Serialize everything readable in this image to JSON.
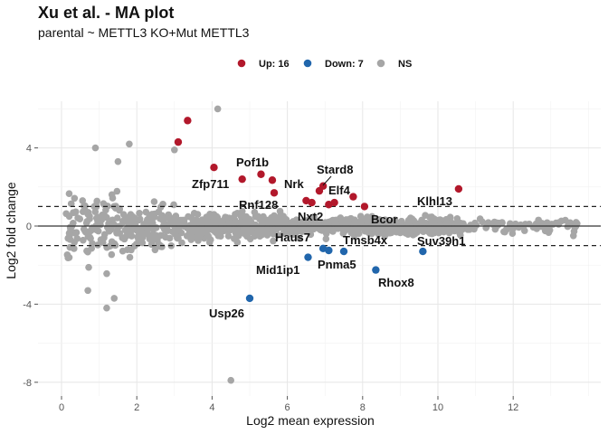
{
  "chart_data": {
    "type": "scatter",
    "title": "Xu et al. - MA plot",
    "subtitle": "parental ~ METTL3 KO+Mut METTL3",
    "xlabel": "Log2 mean expression",
    "ylabel": "Log2 fold change",
    "xlim": [
      -0.7,
      14.0
    ],
    "ylim": [
      -8.4,
      6.2
    ],
    "x_ticks": [
      0,
      2,
      4,
      6,
      8,
      10,
      12
    ],
    "y_ticks": [
      -8,
      -4,
      0,
      4
    ],
    "thresholds": [
      1,
      -1
    ],
    "grid": true,
    "legend_position": "top",
    "legend": [
      {
        "label": "Up: 16",
        "color": "#B2182B"
      },
      {
        "label": "Down: 7",
        "color": "#2166AC"
      },
      {
        "label": "NS",
        "color": "#A6A6A6"
      }
    ],
    "colors": {
      "up": "#B2182B",
      "down": "#2166AC",
      "ns": "#A6A6A6"
    },
    "up_points": [
      {
        "x": 3.35,
        "y": 5.4
      },
      {
        "x": 3.1,
        "y": 4.3
      },
      {
        "x": 4.05,
        "y": 3.0
      },
      {
        "x": 4.8,
        "y": 2.4
      },
      {
        "x": 5.3,
        "y": 2.65
      },
      {
        "x": 5.6,
        "y": 2.35
      },
      {
        "x": 5.65,
        "y": 1.7
      },
      {
        "x": 6.5,
        "y": 1.3
      },
      {
        "x": 6.65,
        "y": 1.2
      },
      {
        "x": 6.85,
        "y": 1.8
      },
      {
        "x": 6.95,
        "y": 2.05
      },
      {
        "x": 7.1,
        "y": 1.1
      },
      {
        "x": 7.25,
        "y": 1.2
      },
      {
        "x": 7.75,
        "y": 1.5
      },
      {
        "x": 8.05,
        "y": 1.0
      },
      {
        "x": 10.55,
        "y": 1.9
      }
    ],
    "down_points": [
      {
        "x": 5.0,
        "y": -3.7
      },
      {
        "x": 6.55,
        "y": -1.6
      },
      {
        "x": 6.95,
        "y": -1.15
      },
      {
        "x": 7.1,
        "y": -1.25
      },
      {
        "x": 7.5,
        "y": -1.3
      },
      {
        "x": 8.35,
        "y": -2.25
      },
      {
        "x": 9.6,
        "y": -1.3
      }
    ],
    "gene_labels": [
      {
        "text": "Pof1b"
      },
      {
        "text": "Zfp711"
      },
      {
        "text": "Nrk"
      },
      {
        "text": "Stard8"
      },
      {
        "text": "Elf4"
      },
      {
        "text": "Rnf128"
      },
      {
        "text": "Nxt2"
      },
      {
        "text": "Bcor"
      },
      {
        "text": "Klhl13"
      },
      {
        "text": "Haus7"
      },
      {
        "text": "Tmsb4x"
      },
      {
        "text": "Suv39h1"
      },
      {
        "text": "Mid1ip1"
      },
      {
        "text": "Pnma5"
      },
      {
        "text": "Rhox8"
      },
      {
        "text": "Usp26"
      }
    ]
  }
}
